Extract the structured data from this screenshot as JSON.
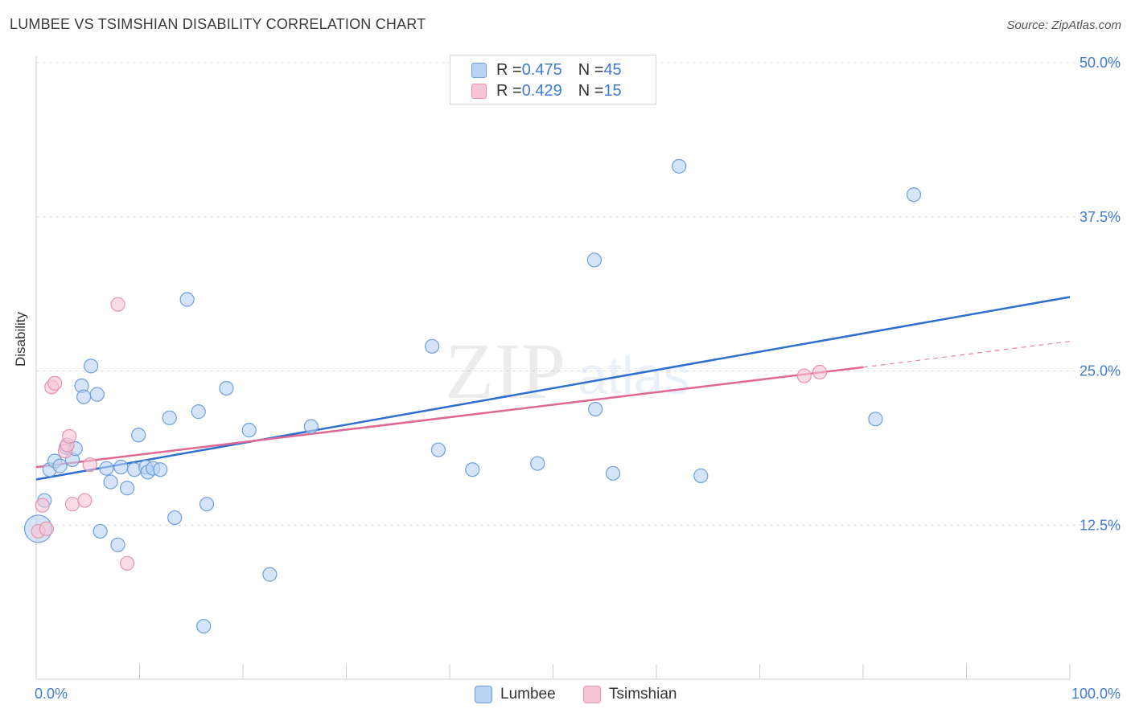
{
  "header": {
    "title": "LUMBEE VS TSIMSHIAN DISABILITY CORRELATION CHART",
    "source": "Source: ZipAtlas.com"
  },
  "watermark": {
    "zip": "ZIP",
    "atlas": "atlas"
  },
  "legend_top": {
    "rows": [
      {
        "r_label": "R = ",
        "r_value": "0.475",
        "n_label": "N = ",
        "n_value": "45"
      },
      {
        "r_label": "R = ",
        "r_value": "0.429",
        "n_label": "N = ",
        "n_value": "15"
      }
    ]
  },
  "chart_data": {
    "type": "scatter",
    "title": "LUMBEE VS TSIMSHIAN DISABILITY CORRELATION CHART",
    "xlabel": "",
    "ylabel": "Disability",
    "xlim": [
      0,
      100
    ],
    "ylim": [
      0,
      52
    ],
    "x_tick_labels": [
      "0.0%",
      "100.0%"
    ],
    "y_ticks": [
      12.5,
      25.0,
      37.5,
      50.0
    ],
    "y_tick_labels": [
      "12.5%",
      "25.0%",
      "37.5%",
      "50.0%"
    ],
    "grid": true,
    "legend_position": "bottom",
    "colors": {
      "lumbee_fill": "#b9d2f3",
      "lumbee_stroke": "#6f9fdc",
      "lumbee_line": "#2e6fd0",
      "tsimshian_fill": "#f7c5d5",
      "tsimshian_stroke": "#e892ae",
      "tsimshian_line": "#e06792"
    },
    "series": [
      {
        "name": "Lumbee",
        "r": 0.475,
        "n": 45,
        "trend": {
          "x": [
            0,
            100
          ],
          "y": [
            16.2,
            31.0
          ]
        },
        "points": [
          {
            "x": 0.2,
            "y": 12.2,
            "big": true
          },
          {
            "x": 0.8,
            "y": 14.5
          },
          {
            "x": 1.3,
            "y": 17.0
          },
          {
            "x": 1.8,
            "y": 17.7
          },
          {
            "x": 2.3,
            "y": 17.3
          },
          {
            "x": 2.9,
            "y": 18.8
          },
          {
            "x": 3.5,
            "y": 17.8
          },
          {
            "x": 3.8,
            "y": 18.7
          },
          {
            "x": 4.4,
            "y": 23.8
          },
          {
            "x": 4.6,
            "y": 22.9
          },
          {
            "x": 5.3,
            "y": 25.4
          },
          {
            "x": 5.9,
            "y": 23.1
          },
          {
            "x": 6.2,
            "y": 12.0
          },
          {
            "x": 6.8,
            "y": 17.1
          },
          {
            "x": 7.2,
            "y": 16.0
          },
          {
            "x": 7.9,
            "y": 10.9
          },
          {
            "x": 8.2,
            "y": 17.2
          },
          {
            "x": 8.8,
            "y": 15.5
          },
          {
            "x": 9.5,
            "y": 17.0
          },
          {
            "x": 9.9,
            "y": 19.8
          },
          {
            "x": 10.6,
            "y": 17.2
          },
          {
            "x": 10.8,
            "y": 16.8
          },
          {
            "x": 11.3,
            "y": 17.1
          },
          {
            "x": 12.0,
            "y": 17.0
          },
          {
            "x": 12.9,
            "y": 21.2
          },
          {
            "x": 13.4,
            "y": 13.1
          },
          {
            "x": 14.6,
            "y": 30.8
          },
          {
            "x": 15.7,
            "y": 21.7
          },
          {
            "x": 16.2,
            "y": 4.3
          },
          {
            "x": 16.5,
            "y": 14.2
          },
          {
            "x": 18.4,
            "y": 23.6
          },
          {
            "x": 20.6,
            "y": 20.2
          },
          {
            "x": 22.6,
            "y": 8.5
          },
          {
            "x": 26.6,
            "y": 20.5
          },
          {
            "x": 38.3,
            "y": 27.0
          },
          {
            "x": 38.9,
            "y": 18.6
          },
          {
            "x": 42.2,
            "y": 17.0
          },
          {
            "x": 48.5,
            "y": 17.5
          },
          {
            "x": 54.0,
            "y": 34.0
          },
          {
            "x": 54.1,
            "y": 21.9
          },
          {
            "x": 55.8,
            "y": 16.7
          },
          {
            "x": 62.2,
            "y": 41.6
          },
          {
            "x": 64.3,
            "y": 16.5
          },
          {
            "x": 81.2,
            "y": 21.1
          },
          {
            "x": 84.9,
            "y": 39.3
          }
        ]
      },
      {
        "name": "Tsimshian",
        "r": 0.429,
        "n": 15,
        "trend": {
          "x": [
            0,
            80
          ],
          "y": [
            17.2,
            25.3
          ]
        },
        "trend_dashed": {
          "x": [
            80,
            100
          ],
          "y": [
            25.3,
            27.4
          ]
        },
        "points": [
          {
            "x": 0.2,
            "y": 12.0
          },
          {
            "x": 0.6,
            "y": 14.1
          },
          {
            "x": 1.0,
            "y": 12.2
          },
          {
            "x": 1.5,
            "y": 23.7
          },
          {
            "x": 1.8,
            "y": 24.0
          },
          {
            "x": 2.8,
            "y": 18.5
          },
          {
            "x": 3.0,
            "y": 19.0
          },
          {
            "x": 3.2,
            "y": 19.7
          },
          {
            "x": 3.5,
            "y": 14.2
          },
          {
            "x": 4.7,
            "y": 14.5
          },
          {
            "x": 5.2,
            "y": 17.4
          },
          {
            "x": 7.9,
            "y": 30.4
          },
          {
            "x": 8.8,
            "y": 9.4
          },
          {
            "x": 74.3,
            "y": 24.6
          },
          {
            "x": 75.8,
            "y": 24.9
          }
        ]
      }
    ]
  }
}
